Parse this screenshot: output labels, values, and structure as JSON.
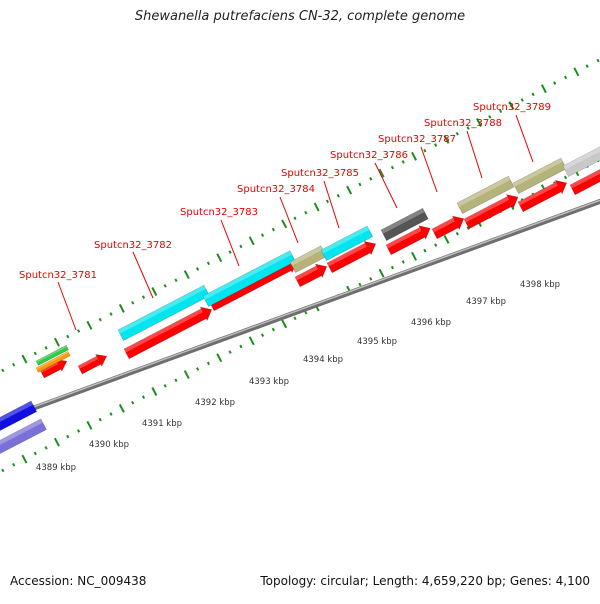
{
  "title": "Shewanella putrefaciens CN-32, complete genome",
  "accession": "Accession: NC_009438",
  "summary": "Topology: circular; Length: 4,659,220 bp; Genes: 4,100",
  "colors": {
    "cds": "#ff0000",
    "backbone": "#8c8c8c",
    "tick": "#1e8c1e",
    "label": "#e60000",
    "ruler_label": "#333333",
    "feature_green": "#2ecc40",
    "feature_orange": "#ff9900",
    "feature_cyan": "#00e5ee",
    "feature_tan": "#b5b37a",
    "feature_darkgray": "#555555",
    "feature_lightgray": "#c8c8c8",
    "feature_blue": "#1010e0",
    "feature_purple": "#7a70d8"
  },
  "gene_labels": [
    "Sputcn32_3781",
    "Sputcn32_3782",
    "Sputcn32_3783",
    "Sputcn32_3784",
    "Sputcn32_3785",
    "Sputcn32_3786",
    "Sputcn32_3787",
    "Sputcn32_3788",
    "Sputcn32_3789"
  ],
  "ruler_labels": [
    "4389 kbp",
    "4390 kbp",
    "4391 kbp",
    "4392 kbp",
    "4393 kbp",
    "4394 kbp",
    "4395 kbp",
    "4396 kbp",
    "4397 kbp",
    "4398 kbp"
  ]
}
